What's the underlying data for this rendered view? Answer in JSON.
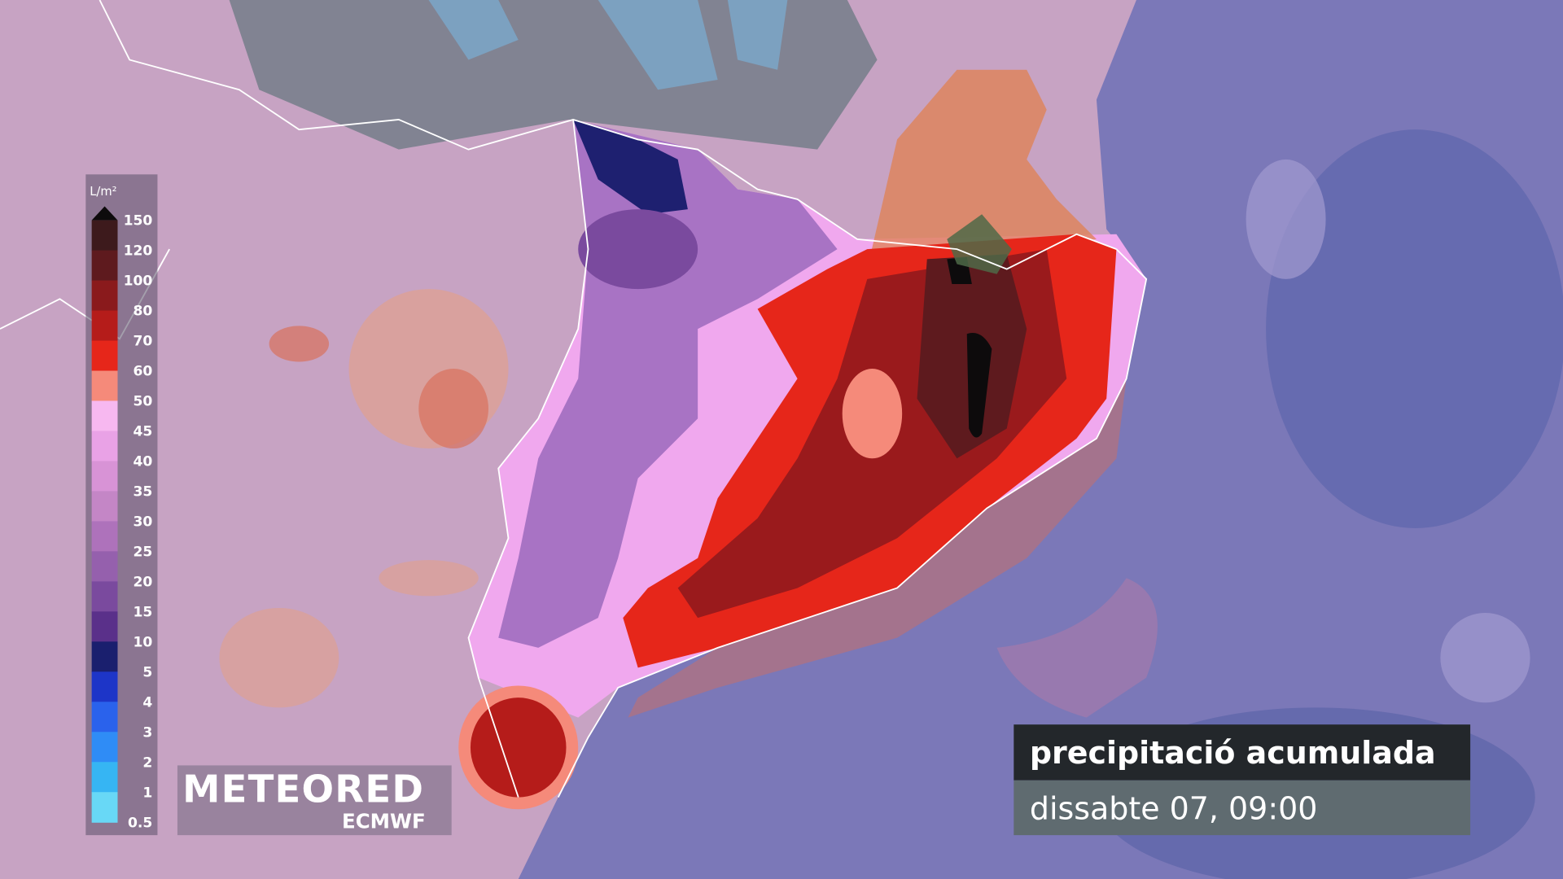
{
  "legend": {
    "unit": "L/m²",
    "levels": [
      {
        "value": 150,
        "color": "#0d0b0c"
      },
      {
        "value": 120,
        "color": "#3d1a1c"
      },
      {
        "value": 100,
        "color": "#5e1a1e"
      },
      {
        "value": 80,
        "color": "#8a1a1c"
      },
      {
        "value": 70,
        "color": "#b51c1a"
      },
      {
        "value": 60,
        "color": "#e6261a"
      },
      {
        "value": 50,
        "color": "#f58a7a"
      },
      {
        "value": 45,
        "color": "#f7b8f0"
      },
      {
        "value": 40,
        "color": "#e9a2e6"
      },
      {
        "value": 35,
        "color": "#d893d6"
      },
      {
        "value": 30,
        "color": "#c486c6"
      },
      {
        "value": 25,
        "color": "#ae72bb"
      },
      {
        "value": 20,
        "color": "#9560ad"
      },
      {
        "value": 15,
        "color": "#7a4a9e"
      },
      {
        "value": 10,
        "color": "#5a308a"
      },
      {
        "value": 5,
        "color": "#1a1f6e"
      },
      {
        "value": 4,
        "color": "#1d35c8"
      },
      {
        "value": 3,
        "color": "#2a62ec"
      },
      {
        "value": 2,
        "color": "#2f8cf6"
      },
      {
        "value": 1,
        "color": "#36b5f3"
      },
      {
        "value": 0.5,
        "color": "#68d8f6"
      }
    ]
  },
  "logo": {
    "brand": "METEORED",
    "model": "ECMWF"
  },
  "caption": {
    "title": "precipitació acumulada",
    "subtitle": "dissabte 07, 09:00"
  }
}
